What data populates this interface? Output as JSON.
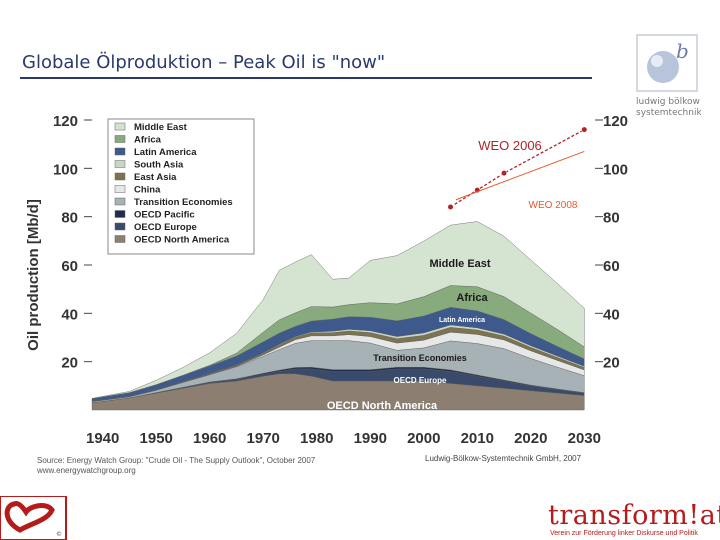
{
  "slide": {
    "title": "Globale Ölproduktion – Peak Oil is \"now\"",
    "publisher_text": "ludwig bölkow systemtechnik",
    "source": "Source: Energy Watch Group: \"Crude Oil - The Supply Outlook\", October 2007",
    "source_url": "www.energywatchgroup.org",
    "credit": "Ludwig-Bölkow-Systemtechnik GmbH, 2007",
    "brand_logo": "transform!at",
    "brand_tagline": "Verein zur Förderung linker Diskurse und Politik"
  },
  "chart_data": {
    "type": "area",
    "stacked": true,
    "title": "",
    "ylabel": "Oil production [Mb/d]",
    "xlabel": "",
    "xlim": [
      1938,
      2032
    ],
    "ylim": [
      0,
      120
    ],
    "x_ticks": [
      1940,
      1950,
      1960,
      1970,
      1980,
      1990,
      2000,
      2010,
      2020,
      2030
    ],
    "y_ticks": [
      20,
      40,
      60,
      80,
      100,
      120
    ],
    "x": [
      1938,
      1945,
      1950,
      1955,
      1960,
      1965,
      1970,
      1973,
      1976,
      1979,
      1983,
      1986,
      1990,
      1995,
      2000,
      2005,
      2010,
      2015,
      2020,
      2025,
      2030
    ],
    "series": [
      {
        "name": "OECD North America",
        "color": "#8c7f72",
        "values": [
          3,
          5,
          7,
          9,
          11,
          12,
          14,
          15,
          15,
          14,
          12,
          12,
          12,
          12,
          12,
          11,
          10,
          9,
          8,
          7,
          6
        ]
      },
      {
        "name": "OECD Europe",
        "color": "#3a4a6b",
        "values": [
          0,
          0,
          0.1,
          0.2,
          0.4,
          0.6,
          0.8,
          1.0,
          2,
          3,
          4,
          4,
          4,
          5,
          5,
          5,
          4,
          3,
          2,
          1.5,
          1
        ]
      },
      {
        "name": "OECD Pacific",
        "color": "#1f2d4a",
        "values": [
          0,
          0,
          0.1,
          0.2,
          0.2,
          0.3,
          0.4,
          0.5,
          0.6,
          0.7,
          0.7,
          0.7,
          0.7,
          0.7,
          0.7,
          0.6,
          0.5,
          0.4,
          0.3,
          0.2,
          0.2
        ]
      },
      {
        "name": "Transition Economies",
        "color": "#a6b2b6",
        "values": [
          0.5,
          0.5,
          1,
          2,
          3,
          5,
          7,
          8.5,
          10,
          11,
          12,
          12,
          11,
          7,
          8,
          12,
          13,
          13,
          11,
          9,
          7
        ]
      },
      {
        "name": "China",
        "color": "#e6e8e8",
        "values": [
          0,
          0,
          0,
          0.1,
          0.1,
          0.2,
          0.6,
          1,
          1.5,
          2,
          2,
          2.5,
          2.7,
          3,
          3.2,
          3.6,
          3.8,
          3.6,
          3.2,
          2.8,
          2.4
        ]
      },
      {
        "name": "East Asia",
        "color": "#7d7350",
        "values": [
          0.2,
          0.2,
          0.2,
          0.3,
          0.4,
          0.5,
          0.7,
          0.9,
          1,
          1.2,
          1.3,
          1.5,
          1.6,
          1.8,
          2,
          2,
          1.8,
          1.6,
          1.4,
          1.2,
          1
        ]
      },
      {
        "name": "South Asia",
        "color": "#c9d7c6",
        "values": [
          0,
          0,
          0,
          0,
          0.1,
          0.1,
          0.2,
          0.3,
          0.3,
          0.4,
          0.6,
          0.7,
          0.8,
          0.9,
          1,
          1,
          0.9,
          0.8,
          0.7,
          0.6,
          0.5
        ]
      },
      {
        "name": "Latin America",
        "color": "#3e5a8c",
        "values": [
          1,
          1.5,
          2,
          2.5,
          3,
          3.6,
          4.5,
          4.6,
          4.2,
          4.5,
          5,
          5.2,
          5.6,
          6.5,
          7,
          7.3,
          7,
          6,
          5,
          4,
          3
        ]
      },
      {
        "name": "Africa",
        "color": "#88ab7e",
        "values": [
          0,
          0,
          0.1,
          0.1,
          0.3,
          1.2,
          4,
          5.5,
          5.6,
          6,
          5,
          5,
          6,
          7,
          8,
          9,
          10,
          9.5,
          8.5,
          7,
          5
        ]
      },
      {
        "name": "Middle East",
        "color": "#d5e3d1",
        "values": [
          0.1,
          0.5,
          1.8,
          3.2,
          5.2,
          8.2,
          13.5,
          20.5,
          21,
          21.5,
          11.5,
          11,
          17.5,
          20,
          23,
          25,
          27,
          25,
          22,
          19,
          16
        ]
      }
    ],
    "annotations": {
      "region_labels": [
        "Middle East",
        "Africa",
        "Latin America",
        "Transition Economies",
        "OECD Europe",
        "OECD North America"
      ],
      "weo_2006": {
        "label": "WEO 2006",
        "color": "#b1232b",
        "x": [
          2005,
          2010,
          2015,
          2030
        ],
        "y": [
          84,
          91,
          98,
          116
        ]
      },
      "weo_2008": {
        "label": "WEO 2008",
        "color": "#e6592b",
        "x": [
          2006,
          2030
        ],
        "y": [
          87,
          107
        ]
      }
    },
    "legend_position": "top-left",
    "legend_order": [
      "Middle East",
      "Africa",
      "Latin America",
      "South Asia",
      "East Asia",
      "China",
      "Transition Economies",
      "OECD Pacific",
      "OECD Europe",
      "OECD North America"
    ]
  }
}
